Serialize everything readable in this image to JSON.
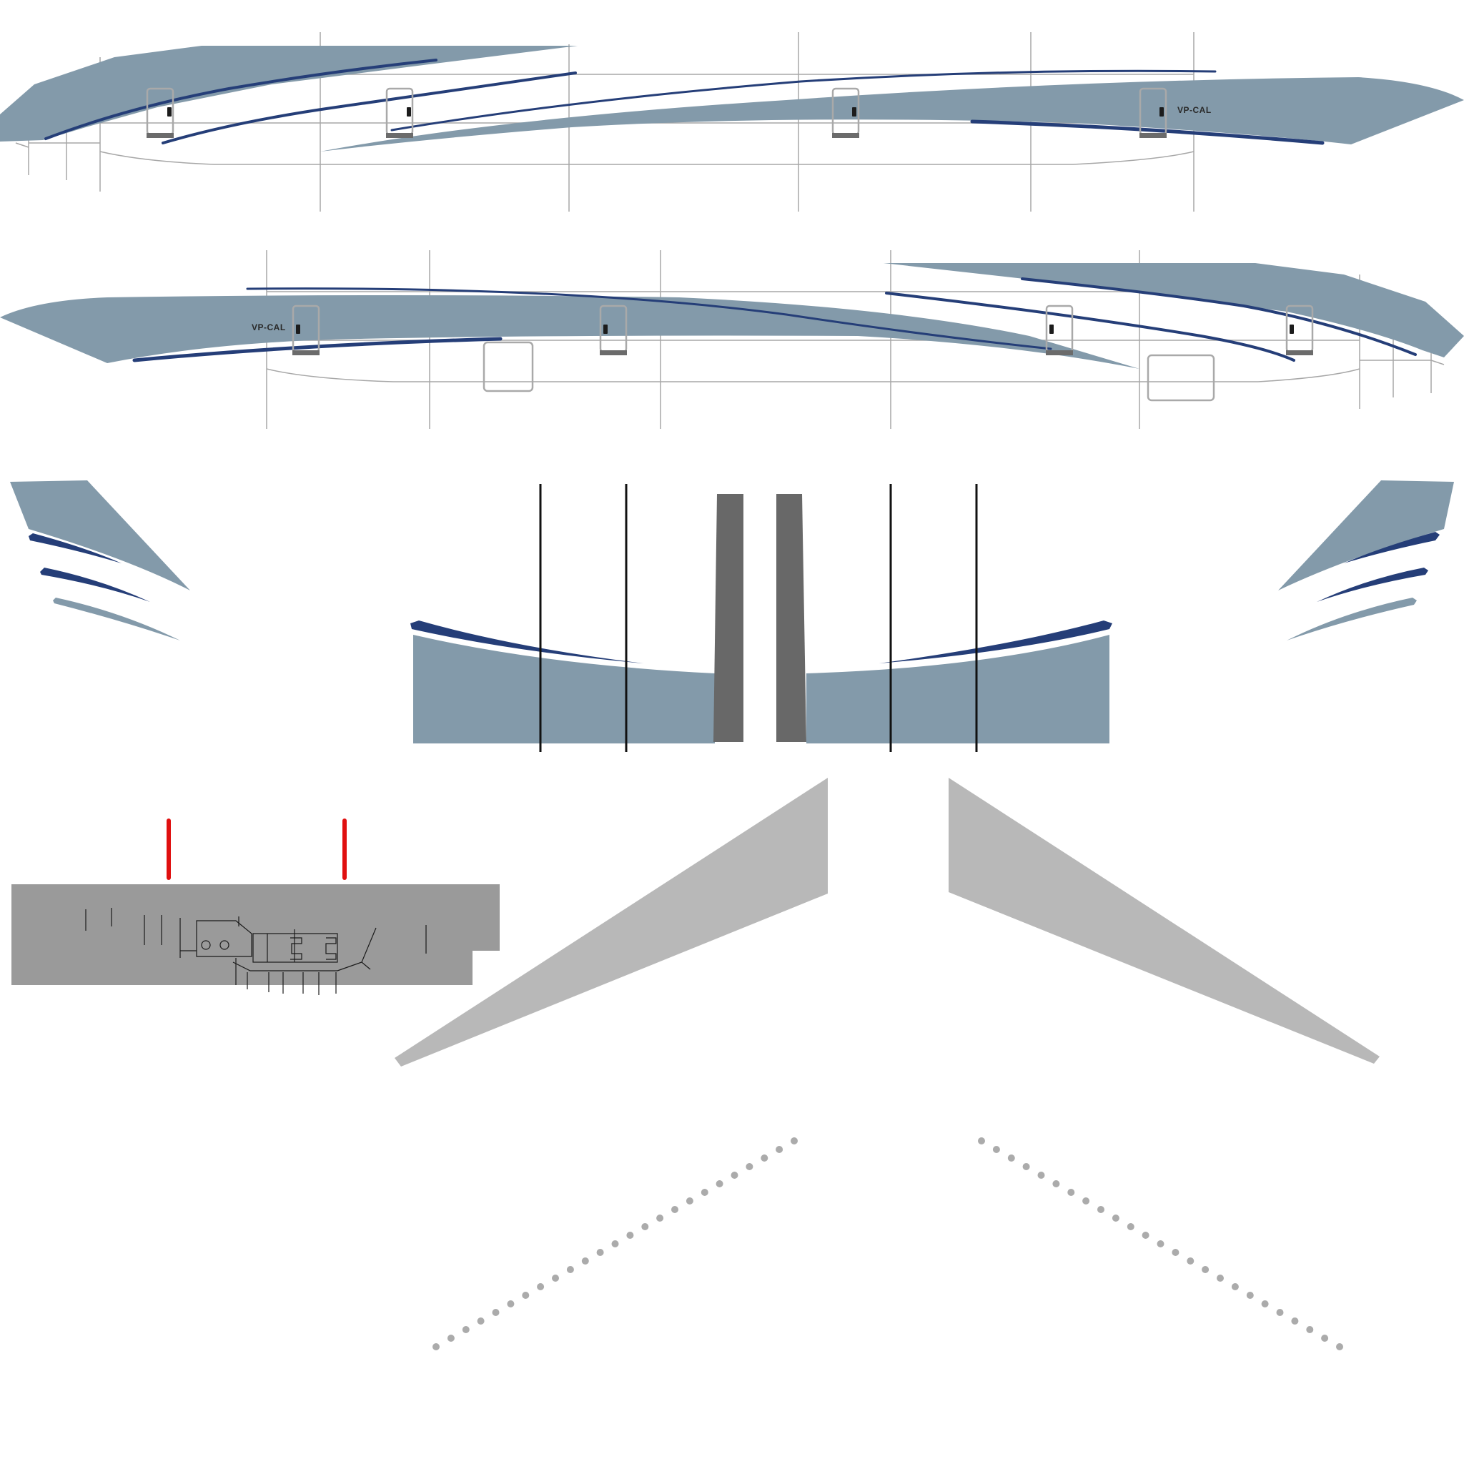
{
  "texture_sheet": {
    "registration": "VP-CAL",
    "colors": {
      "background": "#ffffff",
      "livery_grey_blue": "#839aaa",
      "stripe_navy": "#253e78",
      "panel_line": "#a7a7a7",
      "door_frame": "#a9a9a9",
      "door_sill": "#6b6b6b",
      "door_handle": "#1c1c1c",
      "fin_root_dark": "#686868",
      "wing_grey": "#b8b8b8",
      "tail_strip_grey": "#9a9a9a",
      "marker_red": "#e01010",
      "rivet_dot": "#8f8f8f"
    },
    "parts": [
      "fuselage-left-side",
      "fuselage-right-side",
      "horizontal-stabilizer-left",
      "horizontal-stabilizer-right",
      "tail-cone-upper",
      "vertical-fin-root",
      "tail-panel-strip",
      "wing-left",
      "wing-right",
      "rivet-row-left",
      "rivet-row-right"
    ]
  }
}
